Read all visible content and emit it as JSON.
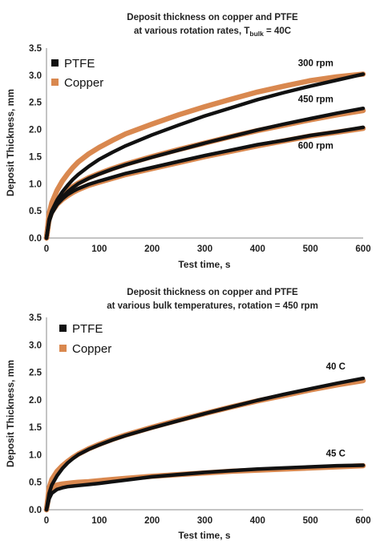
{
  "chart_data": [
    {
      "type": "line",
      "title": "Deposit thickness on copper and PTFE",
      "title_line2_prefix": "at various rotation rates, T",
      "title_line2_subscript": "bulk",
      "title_line2_suffix": " = 40C",
      "xlabel": "Test time, s",
      "ylabel": "Deposit Thickness, mm",
      "xlim": [
        0,
        600
      ],
      "ylim": [
        0,
        3.5
      ],
      "x_ticks": [
        "0",
        "100",
        "200",
        "300",
        "400",
        "500",
        "600"
      ],
      "y_ticks": [
        "0.0",
        "0.5",
        "1.0",
        "1.5",
        "2.0",
        "2.5",
        "3.0",
        "3.5"
      ],
      "grid": false,
      "legend_position": "top-left",
      "legend": [
        "PTFE",
        "Copper"
      ],
      "colors": {
        "PTFE": "#111111",
        "Copper": "#d9884f"
      },
      "x": [
        0,
        5,
        10,
        20,
        30,
        40,
        50,
        60,
        80,
        100,
        125,
        150,
        200,
        250,
        300,
        350,
        400,
        450,
        500,
        550,
        600
      ],
      "annotations": [
        {
          "text": "300 rpm",
          "x": 510,
          "y": 3.17
        },
        {
          "text": "450 rpm",
          "x": 510,
          "y": 2.5
        },
        {
          "text": "600 rpm",
          "x": 510,
          "y": 1.65
        }
      ],
      "series": [
        {
          "name": "PTFE",
          "label": "300 rpm",
          "values": [
            0,
            0.35,
            0.5,
            0.7,
            0.85,
            0.97,
            1.08,
            1.17,
            1.32,
            1.45,
            1.58,
            1.7,
            1.9,
            2.08,
            2.25,
            2.4,
            2.55,
            2.68,
            2.8,
            2.91,
            3.02
          ]
        },
        {
          "name": "Copper",
          "label": "300 rpm",
          "values": [
            0,
            0.45,
            0.65,
            0.88,
            1.05,
            1.18,
            1.3,
            1.4,
            1.55,
            1.67,
            1.8,
            1.92,
            2.1,
            2.27,
            2.42,
            2.56,
            2.69,
            2.8,
            2.9,
            2.97,
            3.02
          ]
        },
        {
          "name": "PTFE",
          "label": "450 rpm",
          "values": [
            0,
            0.3,
            0.45,
            0.62,
            0.75,
            0.85,
            0.93,
            1.0,
            1.1,
            1.18,
            1.27,
            1.35,
            1.49,
            1.62,
            1.75,
            1.87,
            1.99,
            2.1,
            2.2,
            2.3,
            2.39
          ]
        },
        {
          "name": "Copper",
          "label": "450 rpm",
          "values": [
            0,
            0.4,
            0.55,
            0.7,
            0.8,
            0.88,
            0.95,
            1.01,
            1.11,
            1.19,
            1.28,
            1.36,
            1.5,
            1.63,
            1.75,
            1.87,
            1.98,
            2.08,
            2.18,
            2.27,
            2.35
          ]
        },
        {
          "name": "PTFE",
          "label": "600 rpm",
          "values": [
            0,
            0.32,
            0.47,
            0.62,
            0.72,
            0.8,
            0.86,
            0.91,
            0.99,
            1.05,
            1.12,
            1.19,
            1.3,
            1.41,
            1.52,
            1.62,
            1.72,
            1.8,
            1.89,
            1.96,
            2.04
          ]
        },
        {
          "name": "Copper",
          "label": "600 rpm",
          "values": [
            0,
            0.35,
            0.48,
            0.62,
            0.71,
            0.78,
            0.84,
            0.89,
            0.97,
            1.03,
            1.1,
            1.17,
            1.28,
            1.39,
            1.5,
            1.6,
            1.7,
            1.79,
            1.88,
            1.95,
            2.02
          ]
        }
      ]
    },
    {
      "type": "line",
      "title": "Deposit thickness on copper and PTFE",
      "title_line2": "at various bulk temperatures, rotation = 450 rpm",
      "xlabel": "Test time, s",
      "ylabel": "Deposit Thickness, mm",
      "xlim": [
        0,
        600
      ],
      "ylim": [
        0,
        3.5
      ],
      "x_ticks": [
        "0",
        "100",
        "200",
        "300",
        "400",
        "500",
        "600"
      ],
      "y_ticks": [
        "0.0",
        "0.5",
        "1.0",
        "1.5",
        "2.0",
        "2.5",
        "3.0",
        "3.5"
      ],
      "grid": false,
      "legend_position": "top-left",
      "legend": [
        "PTFE",
        "Copper"
      ],
      "colors": {
        "PTFE": "#111111",
        "Copper": "#d9884f"
      },
      "x": [
        0,
        5,
        10,
        20,
        30,
        40,
        50,
        60,
        80,
        100,
        125,
        150,
        200,
        250,
        300,
        350,
        400,
        450,
        500,
        550,
        600
      ],
      "annotations": [
        {
          "text": "40 C",
          "x": 548,
          "y": 2.55
        },
        {
          "text": "45 C",
          "x": 548,
          "y": 0.97
        }
      ],
      "series": [
        {
          "name": "PTFE",
          "label": "40 C",
          "values": [
            0,
            0.3,
            0.45,
            0.62,
            0.75,
            0.85,
            0.93,
            1.0,
            1.1,
            1.18,
            1.27,
            1.35,
            1.49,
            1.62,
            1.75,
            1.87,
            1.99,
            2.1,
            2.2,
            2.3,
            2.39
          ]
        },
        {
          "name": "Copper",
          "label": "40 C",
          "values": [
            0,
            0.4,
            0.55,
            0.7,
            0.8,
            0.88,
            0.95,
            1.01,
            1.11,
            1.19,
            1.28,
            1.36,
            1.5,
            1.63,
            1.75,
            1.87,
            1.98,
            2.08,
            2.18,
            2.27,
            2.35
          ]
        },
        {
          "name": "PTFE",
          "label": "45 C",
          "values": [
            0,
            0.2,
            0.3,
            0.37,
            0.4,
            0.42,
            0.43,
            0.44,
            0.46,
            0.48,
            0.51,
            0.54,
            0.6,
            0.64,
            0.68,
            0.71,
            0.74,
            0.76,
            0.78,
            0.8,
            0.81
          ]
        },
        {
          "name": "Copper",
          "label": "45 C",
          "values": [
            0,
            0.3,
            0.4,
            0.45,
            0.47,
            0.48,
            0.49,
            0.5,
            0.51,
            0.53,
            0.55,
            0.57,
            0.61,
            0.64,
            0.67,
            0.7,
            0.72,
            0.74,
            0.76,
            0.78,
            0.8
          ]
        }
      ]
    }
  ]
}
